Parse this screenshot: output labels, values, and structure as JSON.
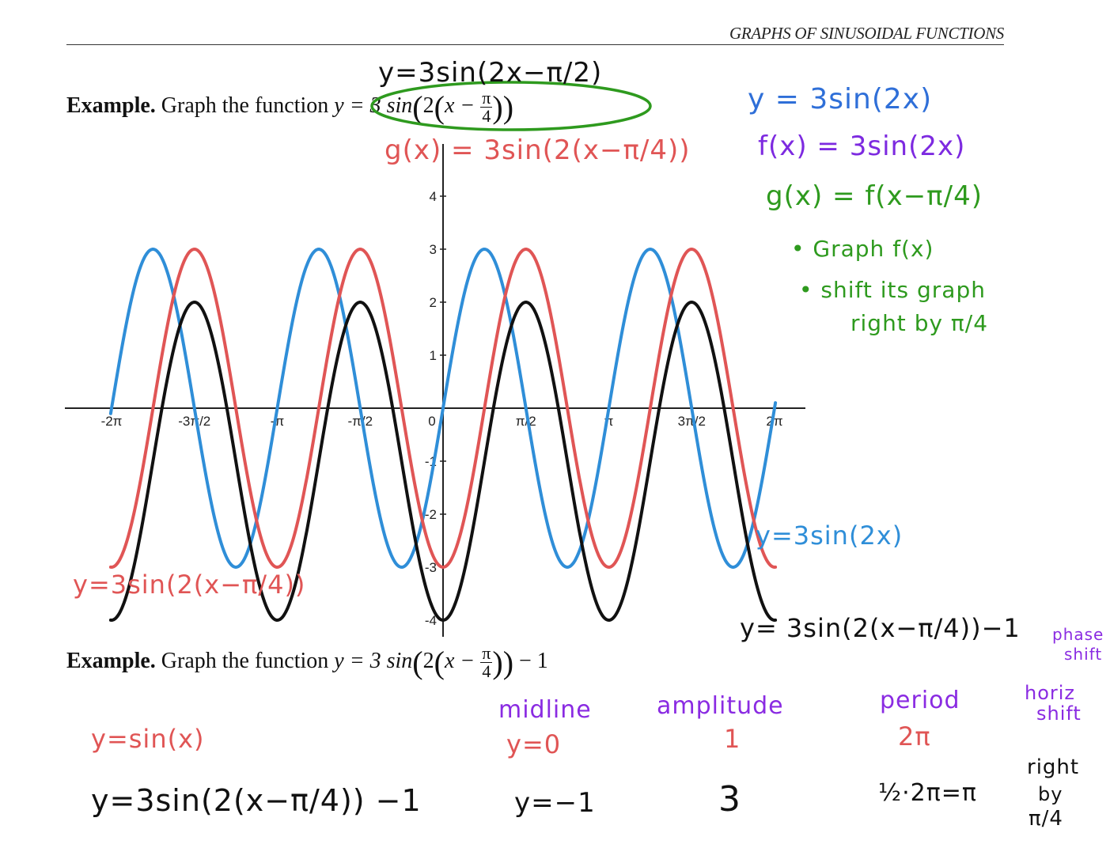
{
  "header": {
    "title": "GRAPHS OF SINUSOIDAL FUNCTIONS"
  },
  "example1": {
    "label": "Example.",
    "text": "Graph the function",
    "y": "y = 3 sin",
    "two": "2",
    "x": "x −",
    "pi": "π",
    "four": "4"
  },
  "example2": {
    "label": "Example.",
    "text": "Graph the function",
    "y": "y = 3 sin",
    "two": "2",
    "x": "x −",
    "pi": "π",
    "four": "4",
    "minus1": "− 1"
  },
  "notes": {
    "top_handwritten": "y=3sin(2x−π/2)",
    "g_red": "g(x) = 3sin(2(x−π/4))",
    "green_1": "y = 3sin(2x)",
    "green_2": "f(x) = 3sin(2x)",
    "green_3": "g(x) = f(x−π/4)",
    "green_4": "• Graph f(x)",
    "green_5": "• shift its graph",
    "green_6": "right by π/4",
    "blue_label": "y=3sin(2x)",
    "red_label": "y=3sin(2(x−π/4))",
    "black_label": "y= 3sin(2(x−π/4))−1",
    "phase": "phase",
    "shift": "shift",
    "horiz": "horiz",
    "horiz_shift": "shift"
  },
  "table": {
    "row1_func": "y=sin(x)",
    "row2_func": "y=3sin(2(x−π/4)) −1",
    "midline_h": "midline",
    "midline_1": "y=0",
    "midline_2": "y=−1",
    "amp_h": "amplitude",
    "amp_1": "1",
    "amp_2": "3",
    "period_h": "period",
    "period_1": "2π",
    "period_2": "½·2π=π",
    "shift_2a": "right",
    "shift_2b": "by",
    "shift_2c": "π/4"
  },
  "chart_data": {
    "type": "line",
    "x_tick_labels": [
      "-2π",
      "-3π/2",
      "-π",
      "-π/2",
      "0",
      "π/2",
      "π",
      "3π/2",
      "2π"
    ],
    "x_ticks": [
      -6.2832,
      -4.7124,
      -3.1416,
      -1.5708,
      0,
      1.5708,
      3.1416,
      4.7124,
      6.2832
    ],
    "y_tick_labels": [
      "4",
      "3",
      "2",
      "1",
      "-1",
      "-2",
      "-3",
      "-4"
    ],
    "y_ticks": [
      4,
      3,
      2,
      1,
      -1,
      -2,
      -3,
      -4
    ],
    "xlim": [
      -6.3,
      6.3
    ],
    "ylim": [
      -4,
      4
    ],
    "series": [
      {
        "name": "y=3sin(2x)",
        "color": "#2f8ed8",
        "amplitude": 3,
        "b": 2,
        "shift": 0,
        "midline": 0,
        "domain": [
          -6.3,
          6.3
        ]
      },
      {
        "name": "y=3sin(2(x−π/4))",
        "color": "#e05555",
        "amplitude": 3,
        "b": 2,
        "shift": 0.7854,
        "midline": 0,
        "domain": [
          -6.3,
          6.3
        ]
      },
      {
        "name": "y= 3sin(2(x−π/4))−1",
        "color": "#111111",
        "amplitude": 3,
        "b": 2,
        "shift": 0.7854,
        "midline": -1,
        "domain": [
          -6.3,
          6.3
        ]
      }
    ]
  },
  "colors": {
    "blue": "#2f8ed8",
    "red": "#e05555",
    "black": "#111111",
    "green": "#2e9a1e",
    "purple": "#8a2be2"
  }
}
